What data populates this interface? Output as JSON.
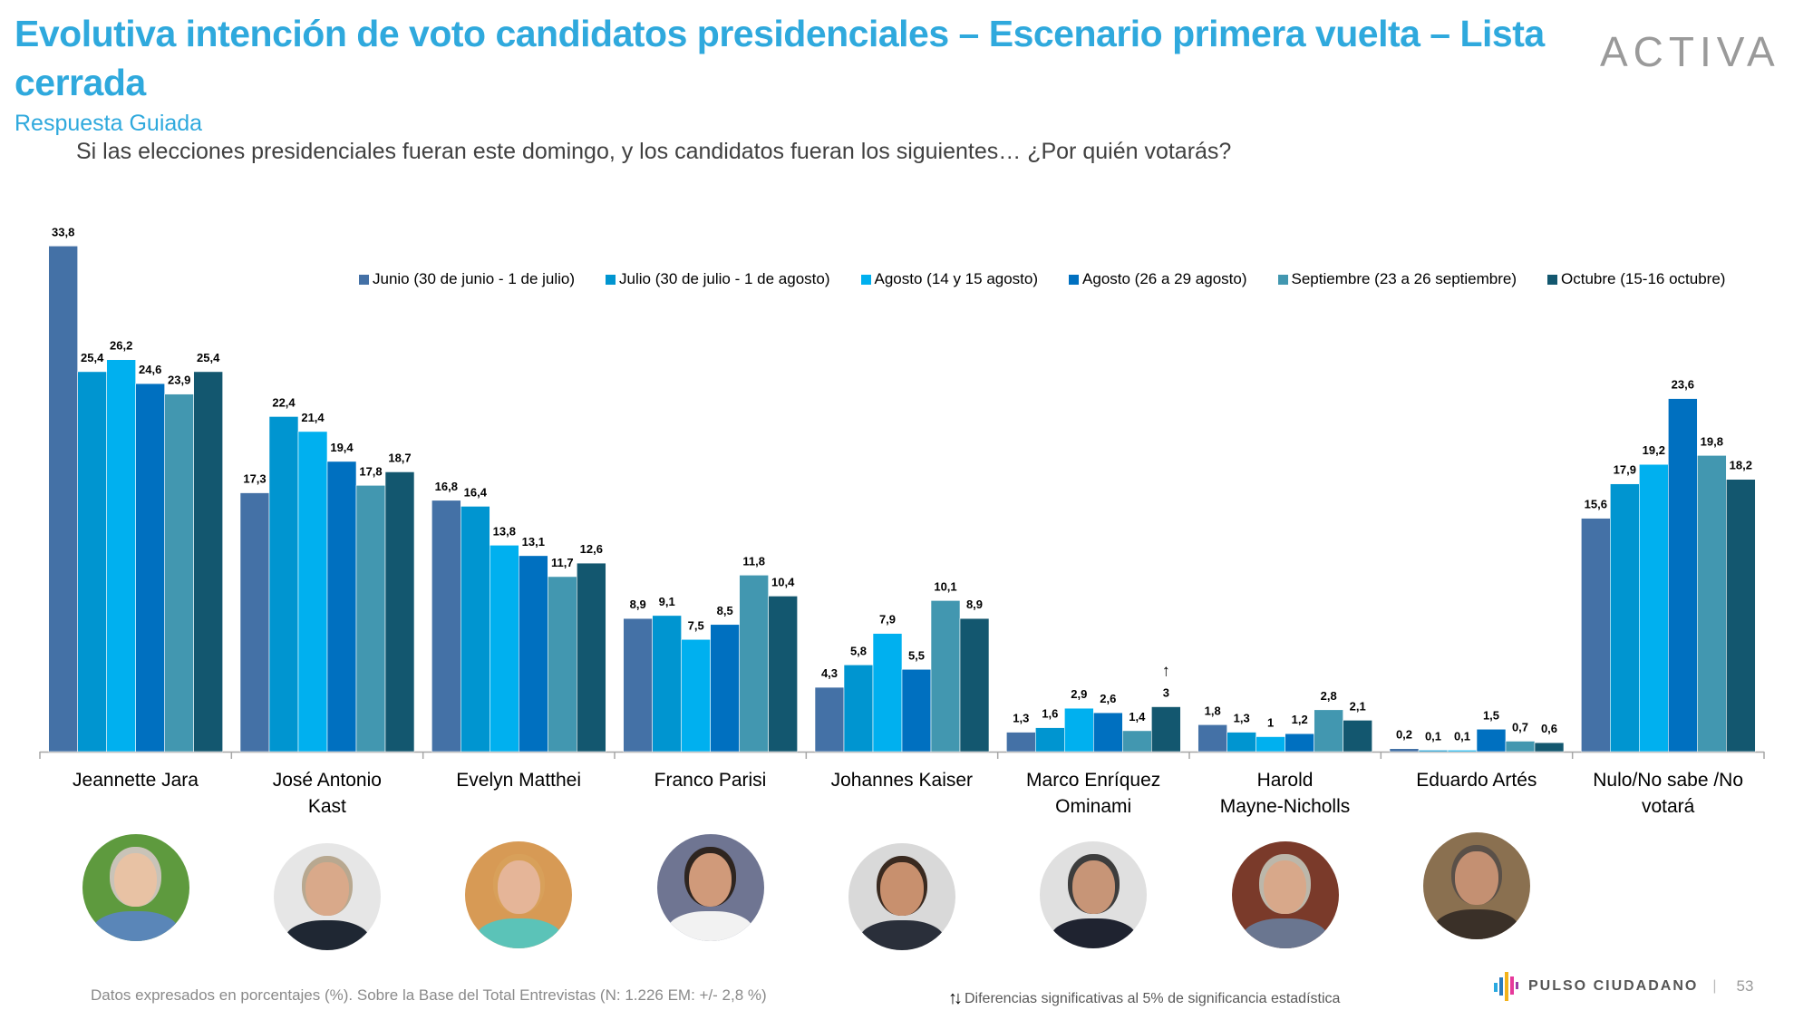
{
  "header": {
    "title": "Evolutiva intención de voto candidatos presidenciales – Escenario primera vuelta – Lista cerrada",
    "subtitle": "Respuesta Guiada",
    "question": "Si las elecciones presidenciales fueran este domingo, y los candidatos fueran los siguientes… ¿Por quién votarás?",
    "logo": "ACTIVA"
  },
  "chart_data": {
    "type": "bar",
    "title": "Evolutiva intención de voto candidatos presidenciales – Escenario primera vuelta – Lista cerrada",
    "xlabel": "",
    "ylabel": "",
    "ylim": [
      0,
      35
    ],
    "grid": false,
    "legend": "top-right",
    "categories": [
      "Jeannette Jara",
      "José Antonio Kast",
      "Evelyn Matthei",
      "Franco Parisi",
      "Johannes Kaiser",
      "Marco Enríquez Ominami",
      "Harold Mayne-Nicholls",
      "Eduardo Artés",
      "Nulo/No sabe /No votará"
    ],
    "category_lines": [
      [
        "Jeannette Jara"
      ],
      [
        "José Antonio",
        "Kast"
      ],
      [
        "Evelyn Matthei"
      ],
      [
        "Franco Parisi"
      ],
      [
        "Johannes Kaiser"
      ],
      [
        "Marco Enríquez",
        "Ominami"
      ],
      [
        "Harold",
        "Mayne-Nicholls"
      ],
      [
        "Eduardo Artés"
      ],
      [
        "Nulo/No sabe /No",
        "votará"
      ]
    ],
    "series": [
      {
        "name": "Junio (30 de junio - 1 de julio)",
        "color": "#4471a6",
        "values": [
          33.8,
          17.3,
          16.8,
          8.9,
          4.3,
          1.3,
          1.8,
          0.2,
          15.6
        ],
        "labels": [
          "33,8",
          "17,3",
          "16,8",
          "8,9",
          "4,3",
          "1,3",
          "1,8",
          "0,2",
          "15,6"
        ]
      },
      {
        "name": "Julio (30 de julio - 1 de agosto)",
        "color": "#0095d0",
        "values": [
          25.4,
          22.4,
          16.4,
          9.1,
          5.8,
          1.6,
          1.3,
          0.1,
          17.9
        ],
        "labels": [
          "25,4",
          "22,4",
          "16,4",
          "9,1",
          "5,8",
          "1,6",
          "1,3",
          "0,1",
          "17,9"
        ]
      },
      {
        "name": "Agosto (14 y 15 agosto)",
        "color": "#00b0ef",
        "values": [
          26.2,
          21.4,
          13.8,
          7.5,
          7.9,
          2.9,
          1.0,
          0.1,
          19.2
        ],
        "labels": [
          "26,2",
          "21,4",
          "13,8",
          "7,5",
          "7,9",
          "2,9",
          "1",
          "0,1",
          "19,2"
        ]
      },
      {
        "name": "Agosto (26 a 29 agosto)",
        "color": "#0070c0",
        "values": [
          24.6,
          19.4,
          13.1,
          8.5,
          5.5,
          2.6,
          1.2,
          1.5,
          23.6
        ],
        "labels": [
          "24,6",
          "19,4",
          "13,1",
          "8,5",
          "5,5",
          "2,6",
          "1,2",
          "1,5",
          "23,6"
        ]
      },
      {
        "name": "Septiembre (23 a 26 septiembre)",
        "color": "#4297b0",
        "values": [
          23.9,
          17.8,
          11.7,
          11.8,
          10.1,
          1.4,
          2.8,
          0.7,
          19.8
        ],
        "labels": [
          "23,9",
          "17,8",
          "11,7",
          "11,8",
          "10,1",
          "1,4",
          "2,8",
          "0,7",
          "19,8"
        ]
      },
      {
        "name": "Octubre (15-16 octubre)",
        "color": "#13576f",
        "values": [
          25.4,
          18.7,
          12.6,
          10.4,
          8.9,
          3.0,
          2.1,
          0.6,
          18.2
        ],
        "labels": [
          "25,4",
          "18,7",
          "12,6",
          "10,4",
          "8,9",
          "3",
          "2,1",
          "0,6",
          "18,2"
        ]
      }
    ],
    "annotations": [
      {
        "category": "Marco Enríquez Ominami",
        "series": "Octubre (15-16 octubre)",
        "text": "↑",
        "meaning": "significant increase"
      }
    ]
  },
  "photos": [
    {
      "name": "Jeannette Jara",
      "bg": "#5e9a3e",
      "skin": "#e8c2a4",
      "hair": "#c9c3b8",
      "body": "#5a86b8"
    },
    {
      "name": "José Antonio Kast",
      "bg": "#e6e6e6",
      "skin": "#d9a98a",
      "hair": "#b8a890",
      "body": "#1f2733"
    },
    {
      "name": "Evelyn Matthei",
      "bg": "#d79a55",
      "skin": "#e5b598",
      "hair": "#d8a05a",
      "body": "#5bc3b8"
    },
    {
      "name": "Franco Parisi",
      "bg": "#6f7592",
      "skin": "#d09a7a",
      "hair": "#2e2520",
      "body": "#f2f2f2"
    },
    {
      "name": "Johannes Kaiser",
      "bg": "#d9d9d9",
      "skin": "#c8906e",
      "hair": "#3a2a20",
      "body": "#2a2f3a"
    },
    {
      "name": "Marco Enríquez Ominami",
      "bg": "#e0e0e0",
      "skin": "#c79577",
      "hair": "#3d3d3d",
      "body": "#1f2330"
    },
    {
      "name": "Harold Mayne-Nicholls",
      "bg": "#7a3a2a",
      "skin": "#d8a88a",
      "hair": "#bcb7aa",
      "body": "#6a7690"
    },
    {
      "name": "Eduardo Artés",
      "bg": "#8a7050",
      "skin": "#c49072",
      "hair": "#5a5048",
      "body": "#3a3028"
    }
  ],
  "footer": {
    "note": "Datos expresados en porcentajes (%). Sobre la Base del Total Entrevistas (N: 1.226  EM: +/- 2,8 %)",
    "significance_icon": "↑↓",
    "significance_note": "Diferencias  significativas  al 5% de significancia estadística",
    "brand": "PULSO CIUDADANO",
    "page_number": "53"
  }
}
